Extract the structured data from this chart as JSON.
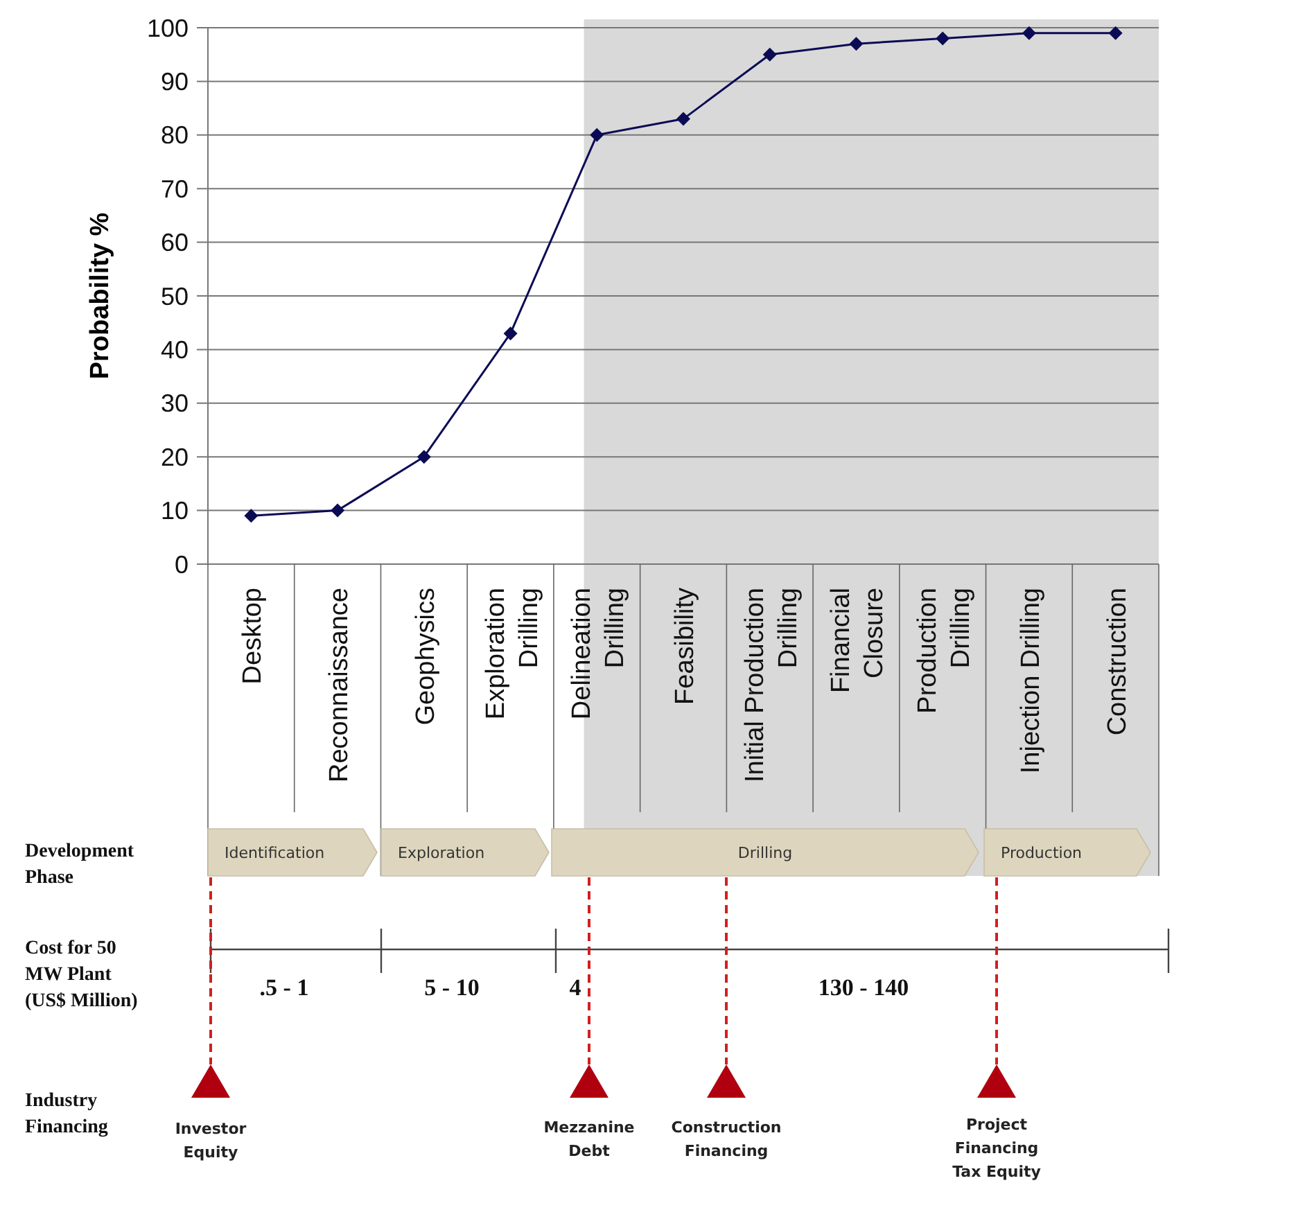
{
  "chart_data": {
    "type": "line",
    "ylabel": "Probability %",
    "categories": [
      "Desktop",
      "Reconnaissance",
      "Geophysics",
      "Exploration\nDrilling",
      "Delineation\nDrilling",
      "Feasibility",
      "Initial Production\nDrilling",
      "Financial\nClosure",
      "Production\nDrilling",
      "Injection Drilling",
      "Construction"
    ],
    "series": [
      {
        "color": "#0b0b55",
        "values": [
          9,
          10,
          20,
          43,
          80,
          83,
          95,
          97,
          98,
          99,
          99
        ]
      }
    ],
    "ylim": [
      0,
      100
    ],
    "yticks": [
      0,
      10,
      20,
      30,
      40,
      50,
      60,
      70,
      80,
      90,
      100
    ],
    "grid": "y",
    "marker": "diamond",
    "line_style": "solid",
    "bands": [
      {
        "axis": "x",
        "from": "Delineation\nDrilling",
        "to": "Construction",
        "color": "#d9d9d9"
      }
    ],
    "annotations": [
      "Development\nPhase",
      "Cost for 50\nMW Plant\n(US$ Million)",
      "Industry\nFinancing",
      "Identification",
      "Exploration",
      "Drilling",
      "Production",
      ".5 - 1",
      "5 - 10",
      "4",
      "130 - 140",
      "Investor\nEquity",
      "Mezzanine\nDebt",
      "Construction\nFinancing",
      "Project\nFinancing\nTax Equity"
    ]
  }
}
